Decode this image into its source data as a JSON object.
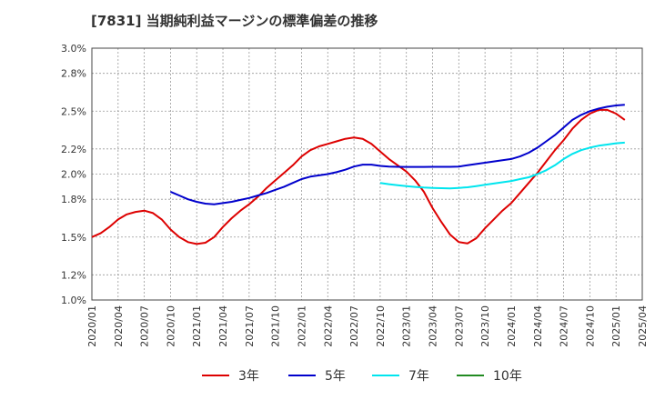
{
  "chart_data": {
    "type": "line",
    "title": "[7831]  当期純利益マージンの標準偏差の推移",
    "xlabel": "",
    "ylabel": "",
    "ylim": [
      1.0,
      3.0
    ],
    "y_ticks": [
      "1.0%",
      "1.2%",
      "1.5%",
      "1.8%",
      "2.0%",
      "2.2%",
      "2.5%",
      "2.8%",
      "3.0%"
    ],
    "x_range": [
      "2020-01",
      "2025-04"
    ],
    "x_ticks": [
      "2020/01",
      "2020/04",
      "2020/07",
      "2020/10",
      "2021/01",
      "2021/04",
      "2021/07",
      "2021/10",
      "2022/01",
      "2022/04",
      "2022/07",
      "2022/10",
      "2023/01",
      "2023/04",
      "2023/07",
      "2023/10",
      "2024/01",
      "2024/04",
      "2024/07",
      "2024/10",
      "2025/01",
      "2025/04"
    ],
    "grid": true,
    "legend_position": "bottom",
    "series": [
      {
        "name": "3年",
        "color": "#dd0000",
        "points": [
          [
            "2020-01",
            1.5
          ],
          [
            "2020-02",
            1.53
          ],
          [
            "2020-03",
            1.58
          ],
          [
            "2020-04",
            1.64
          ],
          [
            "2020-05",
            1.68
          ],
          [
            "2020-06",
            1.7
          ],
          [
            "2020-07",
            1.71
          ],
          [
            "2020-08",
            1.69
          ],
          [
            "2020-09",
            1.64
          ],
          [
            "2020-10",
            1.56
          ],
          [
            "2020-11",
            1.5
          ],
          [
            "2020-12",
            1.46
          ],
          [
            "2021-01",
            1.445
          ],
          [
            "2021-02",
            1.455
          ],
          [
            "2021-03",
            1.5
          ],
          [
            "2021-04",
            1.58
          ],
          [
            "2021-05",
            1.65
          ],
          [
            "2021-06",
            1.71
          ],
          [
            "2021-07",
            1.76
          ],
          [
            "2021-08",
            1.82
          ],
          [
            "2021-09",
            1.89
          ],
          [
            "2021-10",
            1.95
          ],
          [
            "2021-11",
            2.01
          ],
          [
            "2021-12",
            2.07
          ],
          [
            "2022-01",
            2.14
          ],
          [
            "2022-02",
            2.19
          ],
          [
            "2022-03",
            2.22
          ],
          [
            "2022-04",
            2.24
          ],
          [
            "2022-05",
            2.26
          ],
          [
            "2022-06",
            2.28
          ],
          [
            "2022-07",
            2.29
          ],
          [
            "2022-08",
            2.28
          ],
          [
            "2022-09",
            2.24
          ],
          [
            "2022-10",
            2.18
          ],
          [
            "2022-11",
            2.12
          ],
          [
            "2022-12",
            2.07
          ],
          [
            "2023-01",
            2.02
          ],
          [
            "2023-02",
            1.95
          ],
          [
            "2023-03",
            1.86
          ],
          [
            "2023-04",
            1.73
          ],
          [
            "2023-05",
            1.62
          ],
          [
            "2023-06",
            1.52
          ],
          [
            "2023-07",
            1.46
          ],
          [
            "2023-08",
            1.45
          ],
          [
            "2023-09",
            1.49
          ],
          [
            "2023-10",
            1.57
          ],
          [
            "2023-11",
            1.64
          ],
          [
            "2023-12",
            1.71
          ],
          [
            "2024-01",
            1.77
          ],
          [
            "2024-02",
            1.85
          ],
          [
            "2024-03",
            1.93
          ],
          [
            "2024-04",
            2.01
          ],
          [
            "2024-05",
            2.1
          ],
          [
            "2024-06",
            2.19
          ],
          [
            "2024-07",
            2.27
          ],
          [
            "2024-08",
            2.36
          ],
          [
            "2024-09",
            2.43
          ],
          [
            "2024-10",
            2.48
          ],
          [
            "2024-11",
            2.51
          ],
          [
            "2024-12",
            2.51
          ],
          [
            "2025-01",
            2.48
          ],
          [
            "2025-02",
            2.43
          ]
        ]
      },
      {
        "name": "5年",
        "color": "#0000cc",
        "points": [
          [
            "2020-10",
            1.86
          ],
          [
            "2020-11",
            1.83
          ],
          [
            "2020-12",
            1.8
          ],
          [
            "2021-01",
            1.78
          ],
          [
            "2021-02",
            1.765
          ],
          [
            "2021-03",
            1.76
          ],
          [
            "2021-04",
            1.77
          ],
          [
            "2021-05",
            1.78
          ],
          [
            "2021-06",
            1.795
          ],
          [
            "2021-07",
            1.81
          ],
          [
            "2021-08",
            1.83
          ],
          [
            "2021-09",
            1.85
          ],
          [
            "2021-10",
            1.875
          ],
          [
            "2021-11",
            1.9
          ],
          [
            "2021-12",
            1.93
          ],
          [
            "2022-01",
            1.96
          ],
          [
            "2022-02",
            1.98
          ],
          [
            "2022-03",
            1.99
          ],
          [
            "2022-04",
            2.0
          ],
          [
            "2022-05",
            2.015
          ],
          [
            "2022-06",
            2.035
          ],
          [
            "2022-07",
            2.06
          ],
          [
            "2022-08",
            2.075
          ],
          [
            "2022-09",
            2.075
          ],
          [
            "2022-10",
            2.065
          ],
          [
            "2022-11",
            2.06
          ],
          [
            "2022-12",
            2.058
          ],
          [
            "2023-01",
            2.057
          ],
          [
            "2023-02",
            2.057
          ],
          [
            "2023-03",
            2.057
          ],
          [
            "2023-04",
            2.058
          ],
          [
            "2023-05",
            2.058
          ],
          [
            "2023-06",
            2.058
          ],
          [
            "2023-07",
            2.06
          ],
          [
            "2023-08",
            2.07
          ],
          [
            "2023-09",
            2.08
          ],
          [
            "2023-10",
            2.09
          ],
          [
            "2023-11",
            2.1
          ],
          [
            "2023-12",
            2.11
          ],
          [
            "2024-01",
            2.12
          ],
          [
            "2024-02",
            2.14
          ],
          [
            "2024-03",
            2.17
          ],
          [
            "2024-04",
            2.21
          ],
          [
            "2024-05",
            2.26
          ],
          [
            "2024-06",
            2.31
          ],
          [
            "2024-07",
            2.37
          ],
          [
            "2024-08",
            2.43
          ],
          [
            "2024-09",
            2.47
          ],
          [
            "2024-10",
            2.5
          ],
          [
            "2024-11",
            2.52
          ],
          [
            "2024-12",
            2.535
          ],
          [
            "2025-01",
            2.545
          ],
          [
            "2025-02",
            2.55
          ]
        ]
      },
      {
        "name": "7年",
        "color": "#00e5ee",
        "points": [
          [
            "2022-10",
            1.93
          ],
          [
            "2022-11",
            1.92
          ],
          [
            "2022-12",
            1.912
          ],
          [
            "2023-01",
            1.905
          ],
          [
            "2023-02",
            1.898
          ],
          [
            "2023-03",
            1.893
          ],
          [
            "2023-04",
            1.89
          ],
          [
            "2023-05",
            1.888
          ],
          [
            "2023-06",
            1.887
          ],
          [
            "2023-07",
            1.89
          ],
          [
            "2023-08",
            1.895
          ],
          [
            "2023-09",
            1.905
          ],
          [
            "2023-10",
            1.915
          ],
          [
            "2023-11",
            1.925
          ],
          [
            "2023-12",
            1.935
          ],
          [
            "2024-01",
            1.945
          ],
          [
            "2024-02",
            1.96
          ],
          [
            "2024-03",
            1.975
          ],
          [
            "2024-04",
            2.0
          ],
          [
            "2024-05",
            2.03
          ],
          [
            "2024-06",
            2.07
          ],
          [
            "2024-07",
            2.12
          ],
          [
            "2024-08",
            2.16
          ],
          [
            "2024-09",
            2.19
          ],
          [
            "2024-10",
            2.21
          ],
          [
            "2024-11",
            2.225
          ],
          [
            "2024-12",
            2.235
          ],
          [
            "2025-01",
            2.245
          ],
          [
            "2025-02",
            2.25
          ]
        ]
      },
      {
        "name": "10年",
        "color": "#228b22",
        "points": []
      }
    ]
  }
}
